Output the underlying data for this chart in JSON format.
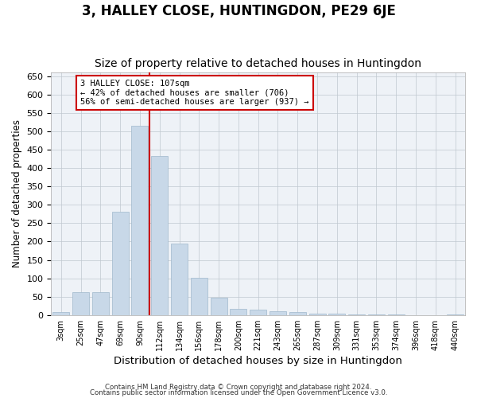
{
  "title": "3, HALLEY CLOSE, HUNTINGDON, PE29 6JE",
  "subtitle": "Size of property relative to detached houses in Huntingdon",
  "xlabel": "Distribution of detached houses by size in Huntingdon",
  "ylabel": "Number of detached properties",
  "categories": [
    "3sqm",
    "25sqm",
    "47sqm",
    "69sqm",
    "90sqm",
    "112sqm",
    "134sqm",
    "156sqm",
    "178sqm",
    "200sqm",
    "221sqm",
    "243sqm",
    "265sqm",
    "287sqm",
    "309sqm",
    "331sqm",
    "353sqm",
    "374sqm",
    "396sqm",
    "418sqm",
    "440sqm"
  ],
  "values": [
    8,
    63,
    63,
    280,
    515,
    432,
    195,
    102,
    48,
    17,
    15,
    10,
    8,
    5,
    3,
    2,
    1,
    1,
    0,
    0,
    2
  ],
  "bar_color": "#c8d8e8",
  "bar_edgecolor": "#a0b8cc",
  "vline_x": 4.5,
  "vline_color": "#cc0000",
  "ylim": [
    0,
    660
  ],
  "yticks": [
    0,
    50,
    100,
    150,
    200,
    250,
    300,
    350,
    400,
    450,
    500,
    550,
    600,
    650
  ],
  "annotation_title": "3 HALLEY CLOSE: 107sqm",
  "annotation_line1": "← 42% of detached houses are smaller (706)",
  "annotation_line2": "56% of semi-detached houses are larger (937) →",
  "annotation_box_color": "#ffffff",
  "annotation_box_edgecolor": "#cc0000",
  "bg_color": "#eef2f7",
  "footer1": "Contains HM Land Registry data © Crown copyright and database right 2024.",
  "footer2": "Contains public sector information licensed under the Open Government Licence v3.0.",
  "title_fontsize": 12,
  "subtitle_fontsize": 10,
  "xlabel_fontsize": 9.5,
  "ylabel_fontsize": 8.5
}
